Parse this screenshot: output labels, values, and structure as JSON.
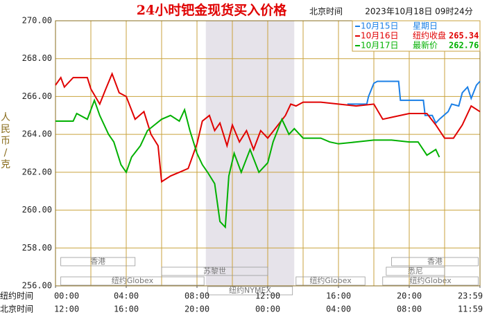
{
  "chart_data": {
    "type": "line",
    "title": "24小时钯金现货买入价格",
    "time_label": "北京时间",
    "timestamp": "2023年10月18日 09时24分",
    "y_label": "人民币/克",
    "ylim": [
      256,
      270
    ],
    "yticks": [
      {
        "value": 256,
        "label": "256.00"
      },
      {
        "value": 258,
        "label": "258.00"
      },
      {
        "value": 260,
        "label": "260.00"
      },
      {
        "value": 262,
        "label": "262.00"
      },
      {
        "value": 264,
        "label": "264.00"
      },
      {
        "value": 266,
        "label": "266.00"
      },
      {
        "value": 268,
        "label": "268.00"
      },
      {
        "value": 270,
        "label": "270.00"
      }
    ],
    "xlim": [
      0,
      24
    ],
    "x_row_labels": [
      "纽约时间",
      "北京时间"
    ],
    "xticks": [
      {
        "value": 0,
        "label": "00:00"
      },
      {
        "value": 4,
        "label": "04:00"
      },
      {
        "value": 8,
        "label": "08:00"
      },
      {
        "value": 12,
        "label": "12:00"
      },
      {
        "value": 16,
        "label": "16:00"
      },
      {
        "value": 20,
        "label": "20:00"
      },
      {
        "value": 24,
        "label": "23:59"
      }
    ],
    "xticks_beijing": [
      "12:00",
      "16:00",
      "20:00",
      "00:00",
      "04:00",
      "08:00",
      "11:59"
    ],
    "xgrid": [
      0,
      2,
      4,
      6,
      8,
      10,
      12,
      14,
      16,
      18,
      20,
      22,
      24
    ],
    "shade": [
      8.5,
      13.5
    ],
    "sessions": [
      "香港",
      "苏黎世",
      "纽约Globex",
      "纽约NYMEX",
      "纽约Globex",
      "香港",
      "悉尼",
      "纽约Globex"
    ],
    "series": [
      {
        "name": "10月15日",
        "note": "星期日",
        "color": "#1a7fe6",
        "x": [
          16.5,
          17.6,
          17.7,
          18.0,
          18.2,
          19.4,
          19.5,
          20.8,
          20.9,
          21.3,
          21.5,
          21.7,
          22.2,
          22.4,
          22.8,
          23.0,
          23.3,
          23.5,
          23.8,
          24.0
        ],
        "values": [
          265.6,
          265.6,
          266.0,
          266.7,
          266.8,
          266.8,
          265.8,
          265.8,
          265.0,
          265.0,
          264.6,
          264.8,
          265.2,
          265.6,
          265.5,
          266.2,
          266.5,
          265.9,
          266.6,
          266.8
        ]
      },
      {
        "name": "10月16日",
        "note": "纽约收盘",
        "note_value": "265.34",
        "color": "#e00000",
        "x": [
          0,
          0.3,
          0.5,
          1.0,
          1.8,
          2.0,
          2.5,
          2.8,
          3.2,
          3.6,
          4.0,
          4.5,
          5.0,
          5.4,
          5.8,
          6.0,
          6.5,
          7.0,
          7.5,
          8.0,
          8.3,
          8.7,
          9.0,
          9.3,
          9.7,
          10.0,
          10.4,
          10.8,
          11.2,
          11.6,
          12.0,
          12.5,
          13.0,
          13.3,
          13.6,
          14.0,
          15.0,
          16.0,
          17.0,
          18.0,
          18.5,
          19.0,
          20.0,
          21.0,
          21.5,
          22.0,
          22.5,
          23.0,
          23.5,
          24.0
        ],
        "values": [
          266.6,
          267.0,
          266.5,
          267.0,
          267.0,
          266.4,
          265.6,
          266.3,
          267.2,
          266.2,
          266.0,
          264.8,
          265.2,
          264.0,
          263.4,
          261.5,
          261.8,
          262.0,
          262.2,
          263.5,
          264.7,
          265.0,
          264.2,
          264.6,
          263.4,
          264.5,
          263.6,
          264.2,
          263.2,
          264.2,
          263.8,
          264.4,
          265.0,
          265.6,
          265.5,
          265.7,
          265.7,
          265.6,
          265.5,
          265.6,
          264.8,
          264.9,
          265.1,
          265.1,
          264.5,
          263.8,
          263.8,
          264.5,
          265.5,
          265.2
        ]
      },
      {
        "name": "10月17日",
        "note": "最新价",
        "note_value": "262.76",
        "color": "#00b000",
        "x": [
          0,
          1.0,
          1.2,
          1.8,
          2.0,
          2.2,
          2.5,
          3.0,
          3.3,
          3.7,
          4.0,
          4.3,
          4.8,
          5.2,
          5.6,
          6.0,
          6.5,
          7.0,
          7.3,
          7.6,
          8.0,
          8.3,
          8.6,
          9.0,
          9.3,
          9.6,
          9.8,
          10.1,
          10.5,
          11.0,
          11.5,
          12.0,
          12.3,
          12.8,
          13.2,
          13.5,
          14.0,
          15.0,
          15.5,
          16.0,
          17.0,
          18.0,
          19.0,
          20.0,
          20.5,
          21.0,
          21.5,
          21.7
        ],
        "values": [
          264.7,
          264.7,
          265.1,
          264.8,
          265.3,
          265.8,
          265.0,
          264.0,
          263.6,
          262.4,
          262.0,
          262.8,
          263.4,
          264.2,
          264.5,
          264.8,
          265.0,
          264.7,
          265.3,
          264.2,
          263.0,
          262.4,
          262.0,
          261.4,
          259.4,
          259.1,
          261.8,
          263.0,
          262.0,
          263.2,
          262.0,
          262.5,
          263.6,
          264.8,
          264.0,
          264.3,
          263.8,
          263.8,
          263.6,
          263.5,
          263.6,
          263.7,
          263.7,
          263.6,
          263.6,
          262.9,
          263.2,
          262.8
        ]
      }
    ]
  }
}
